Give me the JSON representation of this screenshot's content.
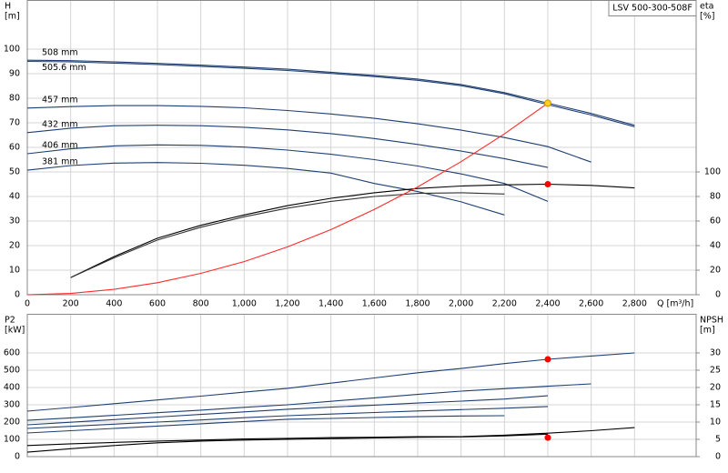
{
  "chart_data": [
    {
      "type": "line",
      "title": "LSV 500-300-508F",
      "ylabel": [
        "H",
        "[m]"
      ],
      "y2label": [
        "eta",
        "[%]"
      ],
      "xlabel": "Q [m³/h]",
      "x": [
        0,
        200,
        400,
        600,
        800,
        1000,
        1200,
        1400,
        1600,
        1800,
        2000,
        2200,
        2400,
        2600,
        2800
      ],
      "xlim": [
        0,
        3084
      ],
      "ylim": [
        0,
        120
      ],
      "y2lim": [
        0,
        240
      ],
      "xticks": [
        0,
        200,
        400,
        600,
        800,
        {
          "value": 1000,
          "label": "1,000"
        },
        {
          "value": 1200,
          "label": "1,200"
        },
        {
          "value": 1400,
          "label": "1,400"
        },
        {
          "value": 1600,
          "label": "1,600"
        },
        {
          "value": 1800,
          "label": "1,800"
        },
        {
          "value": 2000,
          "label": "2,000"
        },
        {
          "value": 2200,
          "label": "2,200"
        },
        {
          "value": 2400,
          "label": "2,400"
        },
        {
          "value": 2600,
          "label": "2,600"
        },
        {
          "value": 2800,
          "label": "2,800"
        }
      ],
      "yticks": [
        0,
        10,
        20,
        30,
        40,
        50,
        60,
        70,
        80,
        90,
        100
      ],
      "y2ticks": [
        0,
        20,
        40,
        60,
        80,
        100
      ],
      "grid": true,
      "series": [
        {
          "name": "508 mm",
          "color": "#1f3f73",
          "values": [
            95.5,
            95.3,
            94.8,
            94.2,
            93.5,
            92.7,
            91.8,
            90.6,
            89.3,
            87.8,
            85.6,
            82.3,
            78,
            73.8,
            69
          ]
        },
        {
          "name": "505.6 mm",
          "color": "#1f3f73",
          "values": [
            95,
            94.8,
            94.3,
            93.7,
            93,
            92.2,
            91.3,
            90.1,
            88.8,
            87.3,
            85.1,
            81.8,
            77.4,
            73.2,
            68.4
          ]
        },
        {
          "name": "457 mm",
          "color": "#1f3f73",
          "values": [
            76,
            76.6,
            77,
            77,
            76.7,
            76.1,
            75,
            73.6,
            71.8,
            69.6,
            67,
            64,
            60.3,
            54,
            null
          ]
        },
        {
          "name": "432 mm",
          "color": "#1f3f73",
          "values": [
            66,
            67.8,
            68.8,
            69,
            68.8,
            68.2,
            67.1,
            65.6,
            63.6,
            61.2,
            58.5,
            55.4,
            51.8,
            null,
            null
          ]
        },
        {
          "name": "406 mm",
          "color": "#1f3f73",
          "values": [
            57.4,
            59.4,
            60.6,
            61,
            60.8,
            60.1,
            58.9,
            57.2,
            55,
            52.4,
            49.2,
            45.3,
            38,
            null,
            null
          ]
        },
        {
          "name": "381 mm",
          "color": "#1f3f73",
          "values": [
            50.7,
            52.6,
            53.6,
            53.8,
            53.5,
            52.7,
            51.4,
            49.5,
            45.3,
            42,
            37.8,
            32.5,
            null,
            null,
            null
          ]
        },
        {
          "axis": "y2",
          "color": "#000000",
          "values": [
            null,
            14,
            31,
            46,
            56.5,
            65,
            72.5,
            78.5,
            83,
            86.5,
            88.5,
            89.5,
            90,
            89,
            87
          ]
        },
        {
          "axis": "y2",
          "color": "#333333",
          "values": [
            null,
            14,
            30,
            44.5,
            55,
            63.5,
            70.5,
            76,
            80,
            82.5,
            83,
            82,
            null,
            null,
            null
          ]
        },
        {
          "color": "#ff2a2a",
          "values": [
            0,
            0.5,
            2.2,
            4.9,
            8.7,
            13.5,
            19.5,
            26.5,
            34.7,
            43.9,
            54.2,
            65.5,
            78,
            null,
            null
          ]
        },
        {
          "style": "point",
          "color": "#ffd21f",
          "values": [
            null,
            null,
            null,
            null,
            null,
            null,
            null,
            null,
            null,
            null,
            null,
            null,
            78,
            null,
            null
          ]
        },
        {
          "style": "point",
          "axis": "y2",
          "color": "#ff0000",
          "values": [
            null,
            null,
            null,
            null,
            null,
            null,
            null,
            null,
            null,
            null,
            null,
            null,
            90,
            null,
            null
          ]
        }
      ]
    },
    {
      "type": "line",
      "ylabel": [
        "P2",
        "[kW]"
      ],
      "y2label": [
        "NPSH",
        "[m]"
      ],
      "x": [
        0,
        200,
        400,
        600,
        800,
        1000,
        1200,
        1400,
        1600,
        1800,
        2000,
        2200,
        2400,
        2600,
        2800
      ],
      "xlim": [
        0,
        3084
      ],
      "ylim": [
        0,
        826
      ],
      "y2lim": [
        0,
        41.3
      ],
      "xticks": [
        0,
        200,
        400,
        600,
        800,
        1000,
        1200,
        1400,
        1600,
        1800,
        2000,
        2200,
        2400,
        2600,
        2800
      ],
      "xtick_labels": false,
      "yticks": [
        0,
        100,
        200,
        300,
        400,
        500,
        600
      ],
      "y2ticks": [
        0,
        5,
        10,
        15,
        20,
        25,
        30
      ],
      "grid": true,
      "series": [
        {
          "color": "#1f3f73",
          "values": [
            263,
            284,
            306,
            328,
            350,
            373,
            395,
            425,
            455,
            485,
            510,
            538,
            563,
            582,
            600
          ]
        },
        {
          "color": "#1f3f73",
          "values": [
            210,
            224,
            239,
            254,
            269,
            285,
            300,
            320,
            340,
            360,
            379,
            393,
            407,
            421,
            null
          ]
        },
        {
          "color": "#1f3f73",
          "values": [
            184,
            199,
            214,
            229,
            244,
            259,
            274,
            286,
            298,
            310,
            321,
            333,
            352,
            null,
            null
          ]
        },
        {
          "color": "#1f3f73",
          "values": [
            163,
            175,
            188,
            200,
            212,
            225,
            237,
            246,
            255,
            264,
            272,
            280,
            290,
            null,
            null
          ]
        },
        {
          "color": "#1f3f73",
          "values": [
            137,
            150,
            163,
            177,
            190,
            203,
            216,
            221,
            226,
            231,
            235,
            237,
            null,
            null,
            null
          ]
        },
        {
          "axis": "y2",
          "color": "#000000",
          "values": [
            3.2,
            3.7,
            4.1,
            4.5,
            4.8,
            5.1,
            5.3,
            5.5,
            5.6,
            5.8,
            5.8,
            6.2,
            6.8,
            7.5,
            8.4
          ]
        },
        {
          "axis": "y2",
          "color": "#000000",
          "values": [
            1.3,
            2.3,
            3.2,
            4.0,
            4.5,
            4.8,
            5.0,
            5.2,
            5.4,
            5.6,
            5.7,
            6.0,
            6.5,
            null,
            null
          ]
        },
        {
          "style": "point",
          "color": "#ff0000",
          "values": [
            null,
            null,
            null,
            null,
            null,
            null,
            null,
            null,
            null,
            null,
            null,
            null,
            563,
            null,
            null
          ]
        },
        {
          "style": "point",
          "axis": "y2",
          "color": "#ff0000",
          "values": [
            null,
            null,
            null,
            null,
            null,
            null,
            null,
            null,
            null,
            null,
            null,
            null,
            5.5,
            null,
            null
          ]
        }
      ]
    }
  ]
}
